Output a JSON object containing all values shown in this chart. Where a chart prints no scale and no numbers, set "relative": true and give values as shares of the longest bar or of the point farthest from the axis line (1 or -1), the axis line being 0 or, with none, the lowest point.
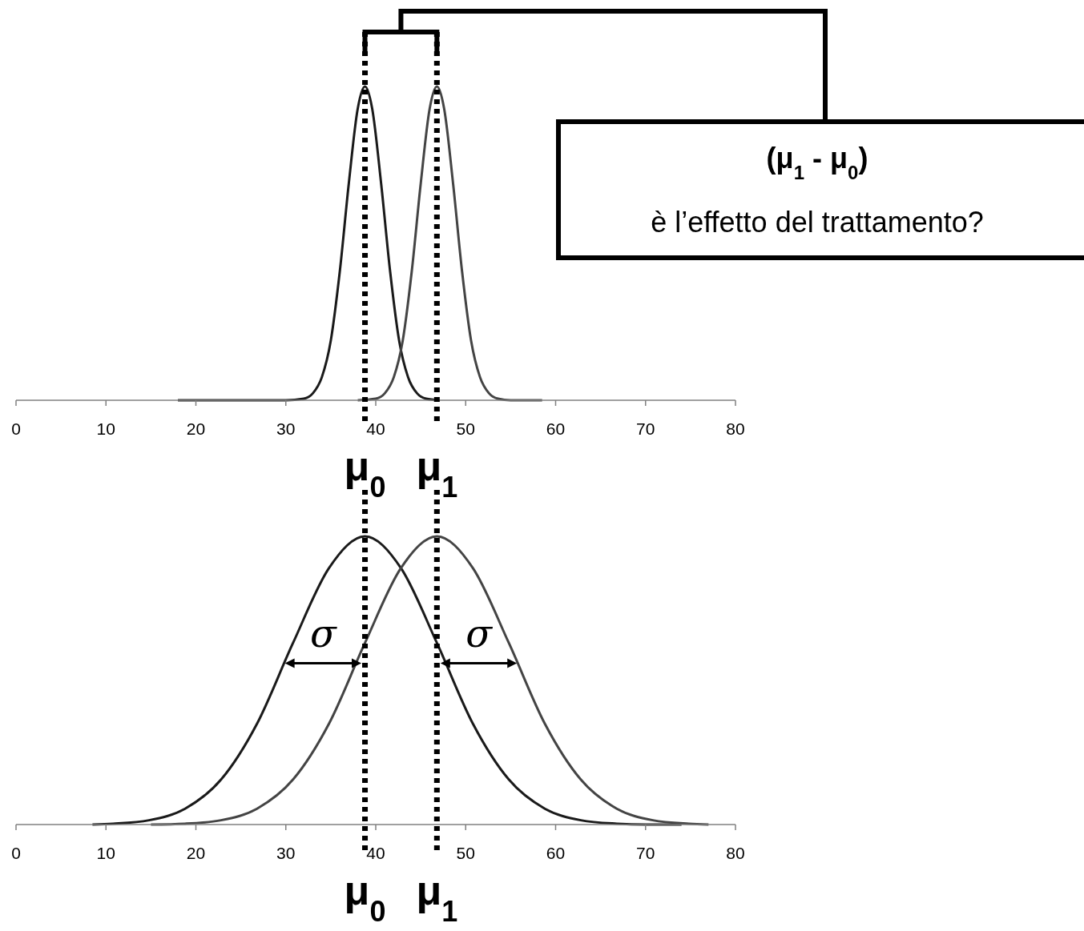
{
  "chart_data": [
    {
      "type": "line",
      "relative": true,
      "tick_labels": "x",
      "xlim": [
        0,
        80
      ],
      "xticks": [
        0,
        10,
        20,
        30,
        40,
        50,
        60,
        70,
        80
      ],
      "series": [
        {
          "color": "#1a1a1a",
          "x": [
            18,
            30,
            32,
            33,
            34,
            35,
            36,
            37,
            38,
            38.8,
            39.6,
            40.6,
            41.6,
            42.6,
            43.6,
            44.6,
            45.6,
            47
          ],
          "values": [
            0,
            0,
            0.005,
            0.022,
            0.073,
            0.19,
            0.41,
            0.69,
            0.93,
            1,
            0.93,
            0.69,
            0.41,
            0.19,
            0.073,
            0.022,
            0.005,
            0
          ]
        },
        {
          "color": "#444444",
          "x": [
            38,
            40,
            41,
            42,
            43,
            44,
            45,
            46,
            46.8,
            47.6,
            48.6,
            49.6,
            50.6,
            51.6,
            52.6,
            53.6,
            55,
            58.5
          ],
          "values": [
            0,
            0.005,
            0.022,
            0.073,
            0.19,
            0.41,
            0.69,
            0.93,
            1,
            0.93,
            0.69,
            0.41,
            0.19,
            0.073,
            0.022,
            0.005,
            0,
            0
          ]
        }
      ],
      "ref_lines": [
        {
          "axis": "x",
          "value": 38.8,
          "label": "μ$_{0}$",
          "line_style": "dotted"
        },
        {
          "axis": "x",
          "value": 46.8,
          "label": "μ$_{1}$",
          "line_style": "dotted"
        }
      ],
      "annotations": [
        "(μ$_{1}$ - μ$_{0}$)",
        "è l’effetto del trattamento?"
      ]
    },
    {
      "type": "line",
      "relative": true,
      "tick_labels": "x",
      "xlim": [
        0,
        80
      ],
      "xticks": [
        0,
        10,
        20,
        30,
        40,
        50,
        60,
        70,
        80
      ],
      "series": [
        {
          "color": "#1a1a1a",
          "x": [
            8.5,
            10.8,
            14.8,
            18.8,
            22.8,
            26.8,
            30.8,
            34.8,
            38.8,
            42.8,
            46.8,
            50.8,
            54.8,
            58.8,
            62.8,
            66.8,
            70,
            74
          ],
          "values": [
            0,
            0.003,
            0.015,
            0.055,
            0.156,
            0.35,
            0.63,
            0.89,
            1,
            0.89,
            0.63,
            0.35,
            0.156,
            0.055,
            0.015,
            0.003,
            0,
            0
          ]
        },
        {
          "color": "#444444",
          "x": [
            15,
            18.8,
            22.8,
            26.8,
            30.8,
            34.8,
            38.8,
            42.8,
            46.8,
            50.8,
            54.8,
            58.8,
            62.8,
            66.8,
            70.8,
            74.8,
            77
          ],
          "values": [
            0,
            0.003,
            0.015,
            0.055,
            0.156,
            0.35,
            0.63,
            0.89,
            1,
            0.89,
            0.63,
            0.35,
            0.156,
            0.055,
            0.015,
            0.003,
            0
          ]
        }
      ],
      "ref_lines": [
        {
          "axis": "x",
          "value": 38.8,
          "label": "μ$_{0}$",
          "line_style": "dotted"
        },
        {
          "axis": "x",
          "value": 46.8,
          "label": "μ$_{1}$",
          "line_style": "dotted"
        }
      ],
      "annotations": [
        "σ",
        "σ"
      ]
    }
  ]
}
